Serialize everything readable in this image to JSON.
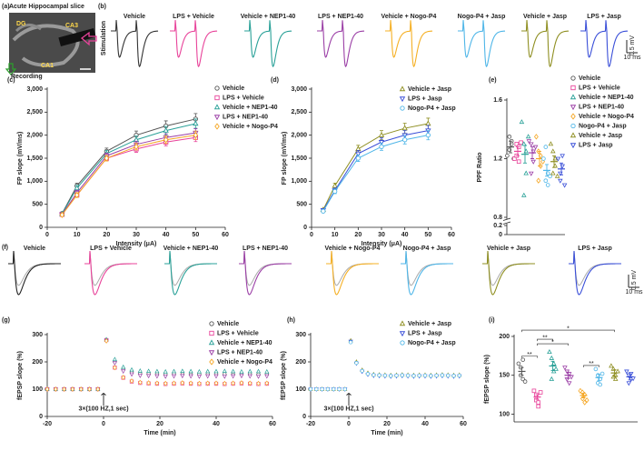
{
  "chart_data": [
    {
      "type": "image",
      "label": "(a)",
      "title": "Acute Hippocampal slice",
      "regions": [
        "DG",
        "CA3",
        "CA1"
      ],
      "annotation": "Recording"
    },
    {
      "type": "traces",
      "label": "(b)",
      "ylabel": "Stimulation",
      "pulses": 2,
      "groups": [
        {
          "name": "Vehicle",
          "color": "#333333"
        },
        {
          "name": "LPS + Vehicle",
          "color": "#e8439a"
        },
        {
          "name": "Vehicle + NEP1-40",
          "color": "#2aa198"
        },
        {
          "name": "LPS + NEP1-40",
          "color": "#9b3fa6"
        },
        {
          "name": "Vehicle + Nogo-P4",
          "color": "#f5b025"
        },
        {
          "name": "Nogo-P4 + Jasp",
          "color": "#4fb6e8"
        },
        {
          "name": "Vehicle + Jasp",
          "color": "#8f8f22"
        },
        {
          "name": "LPS + Jasp",
          "color": "#3a4fd8"
        }
      ],
      "scale_y": "0.5 mV",
      "scale_x": "10 ms"
    },
    {
      "type": "line",
      "label": "(c)",
      "xlabel": "Intensity (μA)",
      "ylabel": "FP slope (mV/ms)",
      "x": [
        5,
        10,
        20,
        30,
        40,
        50
      ],
      "xlim": [
        0,
        60
      ],
      "xticks": [
        0,
        10,
        20,
        30,
        40,
        50,
        60
      ],
      "ylim": [
        0,
        3000
      ],
      "yticks": [
        0,
        500,
        {
          "value": 1000,
          "label": "1,000"
        },
        {
          "value": 1500,
          "label": "1,500"
        },
        {
          "value": 2000,
          "label": "2,000"
        },
        {
          "value": 2500,
          "label": "2,500"
        },
        {
          "value": 3000,
          "label": "3,000"
        }
      ],
      "legend": "upper right",
      "series": [
        {
          "name": "Vehicle",
          "color": "#555555",
          "marker": "circle",
          "values": [
            300,
            900,
            1650,
            2000,
            2200,
            2350
          ],
          "errors": [
            30,
            60,
            70,
            90,
            110,
            120
          ]
        },
        {
          "name": "LPS + Vehicle",
          "color": "#e8439a",
          "marker": "square",
          "values": [
            280,
            700,
            1500,
            1700,
            1850,
            1950
          ],
          "errors": [
            25,
            50,
            60,
            70,
            80,
            90
          ]
        },
        {
          "name": "Vehicle + NEP1-40",
          "color": "#2aa198",
          "marker": "triangle",
          "values": [
            290,
            850,
            1600,
            1900,
            2100,
            2250
          ],
          "errors": [
            30,
            60,
            70,
            80,
            90,
            100
          ]
        },
        {
          "name": "LPS + NEP1-40",
          "color": "#9b3fa6",
          "marker": "invtriangle",
          "values": [
            280,
            750,
            1550,
            1800,
            1950,
            2050
          ],
          "errors": [
            25,
            55,
            60,
            70,
            80,
            90
          ]
        },
        {
          "name": "Vehicle + Nogo-P4",
          "color": "#f5a623",
          "marker": "diamond",
          "values": [
            270,
            700,
            1500,
            1750,
            1900,
            2000
          ],
          "errors": [
            25,
            50,
            60,
            70,
            80,
            90
          ]
        }
      ]
    },
    {
      "type": "line",
      "label": "(d)",
      "xlabel": "Intensity (μA)",
      "ylabel": "FP slope (mV/ms)",
      "x": [
        5,
        10,
        20,
        30,
        40,
        50
      ],
      "xlim": [
        0,
        60
      ],
      "xticks": [
        0,
        10,
        20,
        30,
        40,
        50,
        60
      ],
      "ylim": [
        0,
        3000
      ],
      "yticks": [
        0,
        500,
        {
          "value": 1000,
          "label": "1,000"
        },
        {
          "value": 1500,
          "label": "1,500"
        },
        {
          "value": 2000,
          "label": "2,000"
        },
        {
          "value": 2500,
          "label": "2,500"
        },
        {
          "value": 3000,
          "label": "3,000"
        }
      ],
      "legend": "upper right",
      "series": [
        {
          "name": "Vehicle + Jasp",
          "color": "#8f8f22",
          "marker": "triangle",
          "values": [
            380,
            900,
            1700,
            2000,
            2150,
            2250
          ],
          "errors": [
            30,
            60,
            80,
            100,
            110,
            120
          ]
        },
        {
          "name": "LPS + Jasp",
          "color": "#3a4fd8",
          "marker": "invtriangle",
          "values": [
            370,
            800,
            1600,
            1850,
            2000,
            2100
          ],
          "errors": [
            30,
            50,
            70,
            90,
            100,
            110
          ]
        },
        {
          "name": "Nogo-P4 + Jasp",
          "color": "#4fb6e8",
          "marker": "circle",
          "values": [
            350,
            780,
            1500,
            1750,
            1900,
            2000
          ],
          "errors": [
            25,
            50,
            70,
            80,
            90,
            100
          ]
        }
      ]
    },
    {
      "type": "dot",
      "label": "(e)",
      "ylabel": "PPF Ratio",
      "ylim": [
        0,
        1.6
      ],
      "axis_break": [
        0.2,
        0.8
      ],
      "yticks": [
        0,
        0.2,
        0.8,
        1.2,
        1.6
      ],
      "legend": "right",
      "groups": [
        {
          "name": "Vehicle",
          "color": "#555555",
          "marker": "circle",
          "mean": 1.28,
          "sem": 0.04,
          "points": [
            1.22,
            1.35,
            1.3,
            1.26,
            1.32,
            1.2
          ]
        },
        {
          "name": "LPS + Vehicle",
          "color": "#e8439a",
          "marker": "square",
          "mean": 1.25,
          "sem": 0.03,
          "points": [
            1.2,
            1.3,
            1.28,
            1.22,
            1.18,
            1.31
          ]
        },
        {
          "name": "Vehicle + NEP1-40",
          "color": "#2aa198",
          "marker": "triangle",
          "mean": 1.23,
          "sem": 0.06,
          "points": [
            1.45,
            1.3,
            1.1,
            0.95,
            1.25,
            1.35
          ]
        },
        {
          "name": "LPS + NEP1-40",
          "color": "#9b3fa6",
          "marker": "invtriangle",
          "mean": 1.24,
          "sem": 0.04,
          "points": [
            1.32,
            1.3,
            1.18,
            1.1,
            1.25,
            1.28
          ]
        },
        {
          "name": "Vehicle + Nogo-P4",
          "color": "#f5a623",
          "marker": "diamond",
          "mean": 1.2,
          "sem": 0.05,
          "points": [
            1.35,
            1.25,
            1.15,
            1.05,
            1.22,
            1.18
          ]
        },
        {
          "name": "Nogo-P4 + Jasp",
          "color": "#4fb6e8",
          "marker": "circle",
          "mean": 1.12,
          "sem": 0.04,
          "points": [
            1.2,
            1.05,
            1.1,
            1.28,
            1.02,
            1.08
          ]
        },
        {
          "name": "Vehicle + Jasp",
          "color": "#8f8f22",
          "marker": "triangle",
          "mean": 1.18,
          "sem": 0.04,
          "points": [
            1.3,
            1.1,
            1.15,
            1.25,
            1.2,
            1.08
          ]
        },
        {
          "name": "LPS + Jasp",
          "color": "#3a4fd8",
          "marker": "invtriangle",
          "mean": 1.13,
          "sem": 0.04,
          "points": [
            1.2,
            1.05,
            1.15,
            1.1,
            1.22,
            1.02
          ]
        }
      ]
    },
    {
      "type": "traces",
      "label": "(f)",
      "pulses": 1,
      "groups": [
        {
          "name": "Vehicle",
          "color": "#222222"
        },
        {
          "name": "LPS + Vehicle",
          "color": "#e8439a"
        },
        {
          "name": "Vehicle + NEP1-40",
          "color": "#2aa198"
        },
        {
          "name": "LPS + NEP1-40",
          "color": "#9b3fa6"
        },
        {
          "name": "Vehicle + Nogo-P4",
          "color": "#f5b025"
        },
        {
          "name": "Nogo-P4 + Jasp",
          "color": "#4fb6e8"
        },
        {
          "name": "Vehicle + Jasp",
          "color": "#8f8f22"
        },
        {
          "name": "LPS + Jasp",
          "color": "#3a4fd8"
        }
      ],
      "scale_y": "0.5 mV",
      "scale_x": "10 ms"
    },
    {
      "type": "timecourse",
      "label": "(g)",
      "xlabel": "Time (min)",
      "ylabel": "fEPSP slope (%)",
      "annotation": "3×(100 HZ,1 sec)",
      "xlim": [
        -20,
        60
      ],
      "xticks": [
        -20,
        0,
        20,
        40,
        60
      ],
      "ylim": [
        0,
        300
      ],
      "yticks": [
        0,
        100,
        200,
        300
      ],
      "legend": "upper right",
      "x": [
        -20,
        -17,
        -14,
        -11,
        -8,
        -5,
        -2,
        1,
        4,
        7,
        10,
        13,
        16,
        19,
        22,
        25,
        28,
        31,
        34,
        37,
        40,
        43,
        46,
        49,
        52,
        55,
        58
      ],
      "series": [
        {
          "name": "Vehicle",
          "color": "#555555",
          "marker": "circle",
          "values": [
            100,
            100,
            100,
            100,
            100,
            100,
            100,
            280,
            201,
            172,
            161,
            157,
            156,
            155,
            155,
            156,
            155,
            154,
            155,
            155,
            156,
            155,
            154,
            155,
            155,
            154,
            155
          ]
        },
        {
          "name": "LPS + Vehicle",
          "color": "#e8439a",
          "marker": "square",
          "values": [
            100,
            100,
            100,
            100,
            100,
            100,
            100,
            280,
            179,
            142,
            128,
            123,
            121,
            120,
            119,
            120,
            121,
            120,
            119,
            120,
            120,
            119,
            120,
            121,
            120,
            119,
            120
          ]
        },
        {
          "name": "Vehicle + NEP1-40",
          "color": "#2aa198",
          "marker": "triangle",
          "values": [
            100,
            100,
            100,
            100,
            100,
            100,
            100,
            282,
            209,
            181,
            171,
            167,
            166,
            165,
            164,
            165,
            166,
            165,
            164,
            165,
            165,
            166,
            165,
            164,
            165,
            165,
            164
          ]
        },
        {
          "name": "LPS + NEP1-40",
          "color": "#9b3fa6",
          "marker": "invtriangle",
          "values": [
            100,
            100,
            100,
            100,
            100,
            100,
            100,
            278,
            196,
            166,
            155,
            150,
            149,
            148,
            147,
            148,
            149,
            148,
            147,
            148,
            148,
            147,
            148,
            149,
            148,
            147,
            148
          ]
        },
        {
          "name": "Vehicle + Nogo-P4",
          "color": "#f5a623",
          "marker": "diamond",
          "values": [
            100,
            100,
            100,
            100,
            100,
            100,
            100,
            277,
            179,
            143,
            130,
            125,
            123,
            122,
            121,
            122,
            123,
            122,
            121,
            122,
            122,
            121,
            122,
            123,
            122,
            121,
            122
          ]
        }
      ]
    },
    {
      "type": "timecourse",
      "label": "(h)",
      "xlabel": "Time (min)",
      "ylabel": "fEPSP slope (%)",
      "annotation": "3×(100 HZ,1 sec)",
      "xlim": [
        -20,
        60
      ],
      "xticks": [
        -20,
        0,
        20,
        40,
        60
      ],
      "ylim": [
        0,
        300
      ],
      "yticks": [
        0,
        100,
        200,
        300
      ],
      "legend": "upper right",
      "x": [
        -20,
        -17,
        -14,
        -11,
        -8,
        -5,
        -2,
        1,
        4,
        7,
        10,
        13,
        16,
        19,
        22,
        25,
        28,
        31,
        34,
        37,
        40,
        43,
        46,
        49,
        52,
        55,
        58
      ],
      "series": [
        {
          "name": "Vehicle + Jasp",
          "color": "#8f8f22",
          "marker": "triangle",
          "values": [
            100,
            100,
            100,
            100,
            100,
            100,
            100,
            278,
            200,
            170,
            159,
            154,
            153,
            152,
            151,
            152,
            153,
            152,
            151,
            152,
            152,
            151,
            152,
            153,
            152,
            151,
            152
          ]
        },
        {
          "name": "LPS + Jasp",
          "color": "#3a4fd8",
          "marker": "invtriangle",
          "values": [
            100,
            100,
            100,
            100,
            100,
            100,
            100,
            275,
            195,
            165,
            154,
            150,
            149,
            148,
            147,
            148,
            149,
            148,
            147,
            148,
            148,
            147,
            148,
            149,
            148,
            147,
            148
          ]
        },
        {
          "name": "Nogo-P4 + Jasp",
          "color": "#4fb6e8",
          "marker": "circle",
          "values": [
            100,
            100,
            100,
            100,
            100,
            100,
            100,
            272,
            196,
            167,
            156,
            152,
            151,
            150,
            149,
            150,
            151,
            150,
            149,
            150,
            150,
            149,
            150,
            151,
            150,
            149,
            150
          ]
        }
      ]
    },
    {
      "type": "dot",
      "label": "(i)",
      "ylabel": "fEPSP slope (%)",
      "ylim": [
        90,
        200
      ],
      "yticks": [
        100,
        150,
        200
      ],
      "groups": [
        {
          "color": "#555555",
          "marker": "circle",
          "mean": 155,
          "sem": 5,
          "points": [
            165,
            150,
            145,
            160,
            170,
            142
          ]
        },
        {
          "color": "#e8439a",
          "marker": "square",
          "mean": 122,
          "sem": 3,
          "points": [
            130,
            118,
            115,
            125,
            110,
            128
          ]
        },
        {
          "color": "#2aa198",
          "marker": "triangle",
          "mean": 162,
          "sem": 6,
          "points": [
            180,
            172,
            155,
            145,
            165,
            158
          ]
        },
        {
          "color": "#9b3fa6",
          "marker": "invtriangle",
          "mean": 150,
          "sem": 4,
          "points": [
            160,
            145,
            140,
            155,
            152,
            148
          ]
        },
        {
          "color": "#f5a623",
          "marker": "diamond",
          "mean": 124,
          "sem": 3,
          "points": [
            130,
            120,
            115,
            128,
            125,
            118
          ]
        },
        {
          "color": "#4fb6e8",
          "marker": "circle",
          "mean": 147,
          "sem": 4,
          "points": [
            158,
            140,
            145,
            150,
            138,
            152
          ]
        },
        {
          "color": "#8f8f22",
          "marker": "triangle",
          "mean": 153,
          "sem": 4,
          "points": [
            162,
            148,
            145,
            158,
            150,
            155
          ]
        },
        {
          "color": "#3a4fd8",
          "marker": "invtriangle",
          "mean": 148,
          "sem": 4,
          "points": [
            155,
            140,
            145,
            150,
            152,
            146
          ]
        }
      ],
      "significance": [
        {
          "from": 0,
          "to": 1,
          "label": "**"
        },
        {
          "from": 4,
          "to": 5,
          "label": "**"
        },
        {
          "from": 1,
          "to": 3,
          "label": "*"
        },
        {
          "from": 1,
          "to": 2,
          "label": "**"
        },
        {
          "from": 0,
          "to": 6,
          "label": "*"
        }
      ]
    }
  ]
}
